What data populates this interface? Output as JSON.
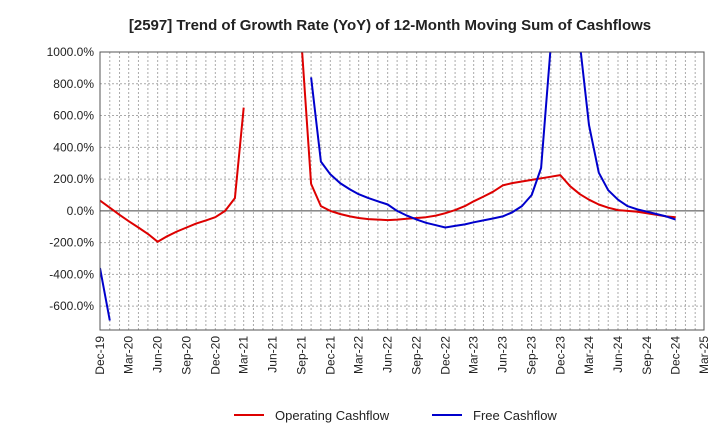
{
  "chart_data": {
    "type": "line",
    "title": "[2597]  Trend of Growth Rate (YoY) of 12-Month Moving Sum of Cashflows",
    "xlabel": "",
    "ylabel": "",
    "ylim": [
      -750,
      1000
    ],
    "yticks": [
      1000,
      800,
      600,
      400,
      200,
      0,
      -200,
      -400,
      -600
    ],
    "ytick_labels": [
      "1000.0%",
      "800.0%",
      "600.0%",
      "400.0%",
      "200.0%",
      "0.0%",
      "-200.0%",
      "-400.0%",
      "-600.0%"
    ],
    "xticks": [
      "2019-12",
      "2020-03",
      "2020-06",
      "2020-09",
      "2020-12",
      "2021-03",
      "2021-06",
      "2021-09",
      "2021-12",
      "2022-03",
      "2022-06",
      "2022-09",
      "2022-12",
      "2023-03",
      "2023-06",
      "2023-09",
      "2023-12",
      "2024-03",
      "2024-06",
      "2024-09",
      "2024-12",
      "2025-03"
    ],
    "xtick_labels": [
      "Dec-19",
      "Mar-20",
      "Jun-20",
      "Sep-20",
      "Dec-20",
      "Mar-21",
      "Jun-21",
      "Sep-21",
      "Dec-21",
      "Mar-22",
      "Jun-22",
      "Sep-22",
      "Dec-22",
      "Mar-23",
      "Jun-23",
      "Sep-23",
      "Dec-23",
      "Mar-24",
      "Jun-24",
      "Sep-24",
      "Dec-24",
      "Mar-25"
    ],
    "grid": true,
    "legend_position": "bottom",
    "series": [
      {
        "name": "Operating Cashflow",
        "color": "#dd0000",
        "points": [
          [
            "2019-12",
            65
          ],
          [
            "2020-01",
            20
          ],
          [
            "2020-02",
            -25
          ],
          [
            "2020-03",
            -65
          ],
          [
            "2020-04",
            -105
          ],
          [
            "2020-05",
            -145
          ],
          [
            "2020-06",
            -195
          ],
          [
            "2020-07",
            -160
          ],
          [
            "2020-08",
            -130
          ],
          [
            "2020-09",
            -105
          ],
          [
            "2020-10",
            -80
          ],
          [
            "2020-11",
            -60
          ],
          [
            "2020-12",
            -40
          ],
          [
            "2021-01",
            0
          ],
          [
            "2021-02",
            80
          ],
          [
            "2021-03",
            650
          ],
          [
            null,
            null
          ],
          [
            "2021-09",
            1050
          ],
          [
            "2021-10",
            170
          ],
          [
            "2021-11",
            30
          ],
          [
            "2021-12",
            0
          ],
          [
            "2022-01",
            -20
          ],
          [
            "2022-02",
            -35
          ],
          [
            "2022-03",
            -45
          ],
          [
            "2022-04",
            -52
          ],
          [
            "2022-05",
            -55
          ],
          [
            "2022-06",
            -58
          ],
          [
            "2022-07",
            -55
          ],
          [
            "2022-08",
            -50
          ],
          [
            "2022-09",
            -45
          ],
          [
            "2022-10",
            -40
          ],
          [
            "2022-11",
            -30
          ],
          [
            "2022-12",
            -15
          ],
          [
            "2023-01",
            5
          ],
          [
            "2023-02",
            30
          ],
          [
            "2023-03",
            60
          ],
          [
            "2023-04",
            90
          ],
          [
            "2023-05",
            120
          ],
          [
            "2023-06",
            160
          ],
          [
            "2023-07",
            175
          ],
          [
            "2023-08",
            185
          ],
          [
            "2023-09",
            195
          ],
          [
            "2023-10",
            205
          ],
          [
            "2023-11",
            215
          ],
          [
            "2023-12",
            225
          ],
          [
            "2024-01",
            155
          ],
          [
            "2024-02",
            105
          ],
          [
            "2024-03",
            70
          ],
          [
            "2024-04",
            40
          ],
          [
            "2024-05",
            20
          ],
          [
            "2024-06",
            5
          ],
          [
            "2024-07",
            0
          ],
          [
            "2024-08",
            -5
          ],
          [
            "2024-09",
            -15
          ],
          [
            "2024-10",
            -25
          ],
          [
            "2024-11",
            -35
          ],
          [
            "2024-12",
            -40
          ]
        ]
      },
      {
        "name": "Free Cashflow",
        "color": "#0000cc",
        "points": [
          [
            "2019-12",
            -360
          ],
          [
            "2020-01",
            -690
          ],
          [
            null,
            null
          ],
          [
            "2021-10",
            840
          ],
          [
            "2021-11",
            310
          ],
          [
            "2021-12",
            230
          ],
          [
            "2022-01",
            175
          ],
          [
            "2022-02",
            135
          ],
          [
            "2022-03",
            105
          ],
          [
            "2022-04",
            80
          ],
          [
            "2022-05",
            60
          ],
          [
            "2022-06",
            40
          ],
          [
            "2022-07",
            0
          ],
          [
            "2022-08",
            -30
          ],
          [
            "2022-09",
            -55
          ],
          [
            "2022-10",
            -75
          ],
          [
            "2022-11",
            -90
          ],
          [
            "2022-12",
            -105
          ],
          [
            "2023-01",
            -95
          ],
          [
            "2023-02",
            -85
          ],
          [
            "2023-03",
            -72
          ],
          [
            "2023-04",
            -60
          ],
          [
            "2023-05",
            -48
          ],
          [
            "2023-06",
            -35
          ],
          [
            "2023-07",
            -10
          ],
          [
            "2023-08",
            30
          ],
          [
            "2023-09",
            100
          ],
          [
            "2023-10",
            270
          ],
          [
            "2023-11",
            1050
          ],
          [
            null,
            null
          ],
          [
            "2024-02",
            1050
          ],
          [
            "2024-03",
            540
          ],
          [
            "2024-04",
            240
          ],
          [
            "2024-05",
            130
          ],
          [
            "2024-06",
            70
          ],
          [
            "2024-07",
            30
          ],
          [
            "2024-08",
            10
          ],
          [
            "2024-09",
            -5
          ],
          [
            "2024-10",
            -20
          ],
          [
            "2024-11",
            -35
          ],
          [
            "2024-12",
            -55
          ]
        ]
      }
    ]
  }
}
